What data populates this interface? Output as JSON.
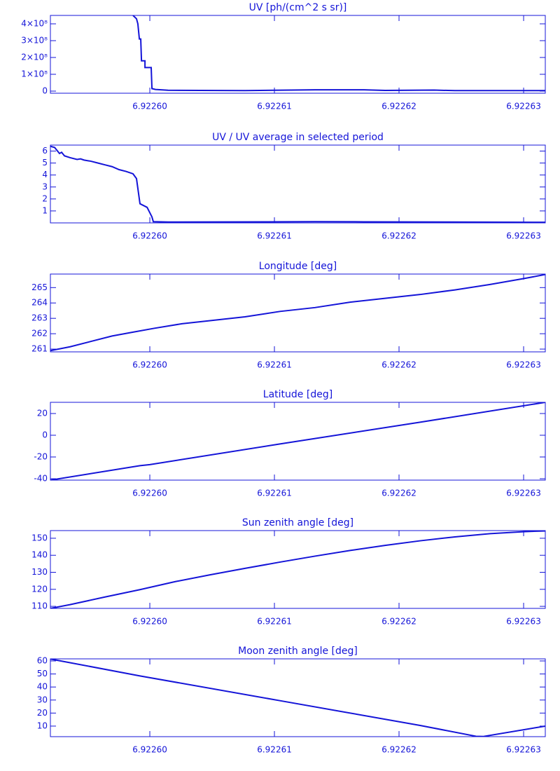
{
  "chart_data": [
    {
      "type": "line",
      "title": "UV [ph/(cm^2 s sr)]",
      "color": "#1414d8",
      "x": [
        6.92259865,
        6.92259893,
        6.92259904,
        6.92259916,
        6.92259927,
        6.92259933,
        6.92259961,
        6.92259961,
        6.92260011,
        6.92260017,
        6.92260045,
        6.92260146,
        6.92260764,
        6.92261326,
        6.92261719,
        6.92261888,
        6.92262281,
        6.92262449,
        6.92263174
      ],
      "values": [
        450000000,
        430000000,
        400000000,
        310000000,
        310000000,
        180000000,
        180000000,
        140000000,
        140000000,
        15000000,
        10000000,
        5000000,
        3000000,
        8000000,
        8000000,
        4000000,
        6000000,
        3000000,
        3000000
      ],
      "xlim": [
        6.92259202,
        6.92263174
      ],
      "xticks": [
        {
          "value": 6.9226,
          "label": "6.92260"
        },
        6.92261,
        6.92262,
        6.92263
      ],
      "ylim": [
        -12500000,
        450000000
      ],
      "yticks": [
        0,
        {
          "value": 100000000,
          "label": "1×10⁸"
        },
        {
          "value": 200000000,
          "label": "2×10⁸"
        },
        {
          "value": 300000000,
          "label": "3×10⁸"
        },
        {
          "value": 400000000,
          "label": "4×10⁸"
        }
      ]
    },
    {
      "type": "line",
      "title": "UV / UV average in selected period",
      "color": "#1414d8",
      "x": [
        6.92259202,
        6.92259236,
        6.92259275,
        6.92259292,
        6.92259315,
        6.9225936,
        6.92259416,
        6.92259444,
        6.92259472,
        6.92259528,
        6.92259584,
        6.9225964,
        6.92259697,
        6.92259753,
        6.92259809,
        6.92259865,
        6.92259893,
        6.92259921,
        6.92259978,
        6.92260017,
        6.92260028,
        6.92260146,
        6.92261326,
        6.92261719,
        6.92262393,
        6.92263174
      ],
      "values": [
        6.4,
        6.3,
        5.8,
        5.9,
        5.6,
        5.45,
        5.3,
        5.35,
        5.25,
        5.15,
        5.0,
        4.85,
        4.7,
        4.45,
        4.3,
        4.1,
        3.7,
        1.6,
        1.3,
        0.5,
        0.1,
        0.07,
        0.1,
        0.09,
        0.07,
        0.05
      ],
      "xlim": [
        6.92259202,
        6.92263174
      ],
      "xticks": [
        {
          "value": 6.9226,
          "label": "6.92260"
        },
        6.92261,
        6.92262,
        6.92263
      ],
      "ylim": [
        0,
        6.5
      ],
      "yticks": [
        1,
        2,
        3,
        4,
        5,
        6
      ]
    },
    {
      "type": "line",
      "title": "Longitude [deg]",
      "color": "#1414d8",
      "x": [
        6.92259202,
        6.9225936,
        6.92259528,
        6.92259697,
        6.92259865,
        6.92260034,
        6.92260258,
        6.92260483,
        6.92260764,
        6.92261045,
        6.92261326,
        6.92261607,
        6.92261888,
        6.92262169,
        6.92262449,
        6.9226273,
        6.92263011,
        6.92263174
      ],
      "values": [
        260.9,
        261.15,
        261.5,
        261.85,
        262.1,
        262.35,
        262.65,
        262.85,
        263.1,
        263.45,
        263.7,
        264.05,
        264.3,
        264.55,
        264.85,
        265.2,
        265.6,
        265.85
      ],
      "xlim": [
        6.92259202,
        6.92263174
      ],
      "xticks": [
        {
          "value": 6.9226,
          "label": "6.92260"
        },
        6.92261,
        6.92262,
        6.92263
      ],
      "ylim": [
        260.82,
        265.88
      ],
      "yticks": [
        261,
        262,
        263,
        264,
        265
      ]
    },
    {
      "type": "line",
      "title": "Latitude [deg]",
      "color": "#1414d8",
      "x": [
        6.92259202,
        6.92259921,
        6.9226,
        6.92261045,
        6.92262169,
        6.92263174
      ],
      "values": [
        -41.3,
        -28,
        -27,
        -8,
        12,
        30.3
      ],
      "xlim": [
        6.92259202,
        6.92263174
      ],
      "xticks": [
        {
          "value": 6.9226,
          "label": "6.92260"
        },
        6.92261,
        6.92262,
        6.92263
      ],
      "ylim": [
        -41.3,
        30.3
      ],
      "yticks": [
        -40,
        -20,
        0,
        20
      ]
    },
    {
      "type": "line",
      "title": "Sun zenith angle [deg]",
      "color": "#1414d8",
      "x": [
        6.92259202,
        6.9225936,
        6.9225964,
        6.92259921,
        6.92260202,
        6.92260483,
        6.92260764,
        6.92261045,
        6.92261326,
        6.92261607,
        6.92261888,
        6.92262169,
        6.92262449,
        6.9226273,
        6.92263011,
        6.92263174
      ],
      "values": [
        108.8,
        111,
        115.5,
        119.8,
        124.5,
        128.5,
        132.3,
        136,
        139.5,
        142.8,
        145.8,
        148.5,
        150.8,
        152.7,
        153.9,
        154.3
      ],
      "xlim": [
        6.92259202,
        6.92263174
      ],
      "xticks": [
        {
          "value": 6.9226,
          "label": "6.92260"
        },
        6.92261,
        6.92262,
        6.92263
      ],
      "ylim": [
        108.8,
        154.5
      ],
      "yticks": [
        110,
        120,
        130,
        140,
        150
      ]
    },
    {
      "type": "line",
      "title": "Moon zenith angle [deg]",
      "color": "#1414d8",
      "x": [
        6.92259202,
        6.92259921,
        6.92261045,
        6.92262169,
        6.92262618,
        6.92262674,
        6.92263174
      ],
      "values": [
        61.5,
        48.5,
        29.5,
        10.5,
        2.2,
        2.0,
        10
      ],
      "xlim": [
        6.92259202,
        6.92263174
      ],
      "xticks": [
        {
          "value": 6.9226,
          "label": "6.92260"
        },
        6.92261,
        6.92262,
        6.92263
      ],
      "ylim": [
        1.9,
        61.6
      ],
      "yticks": [
        10,
        20,
        30,
        40,
        50,
        60
      ]
    }
  ]
}
